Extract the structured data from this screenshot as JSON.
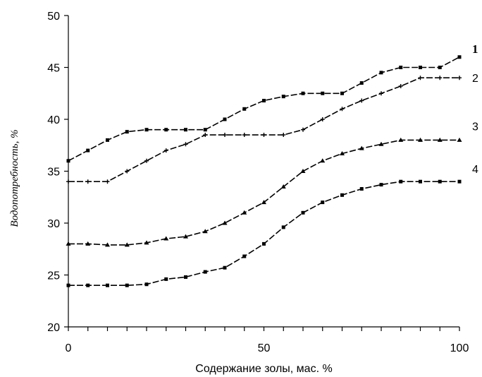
{
  "chart_data": {
    "type": "line",
    "title": "",
    "xlabel": "Содержание золы, мас. %",
    "ylabel": "Водопотребность, %",
    "xlim": [
      0,
      100
    ],
    "ylim": [
      20,
      50
    ],
    "x_ticks": [
      "0",
      "50",
      "100"
    ],
    "y_ticks": [
      "20",
      "25",
      "30",
      "35",
      "40",
      "45",
      "50"
    ],
    "grid": false,
    "legend": "inline labels at right end of lines",
    "x": [
      0,
      5,
      10,
      15,
      20,
      25,
      30,
      35,
      40,
      45,
      50,
      55,
      60,
      65,
      70,
      75,
      80,
      85,
      90,
      95,
      100
    ],
    "series": [
      {
        "name": "1",
        "marker": "square",
        "values": [
          36,
          37,
          38,
          38.8,
          39,
          39,
          39,
          39,
          40,
          41,
          41.8,
          42.2,
          42.5,
          42.5,
          42.5,
          43.5,
          44.5,
          45,
          45,
          45,
          46
        ]
      },
      {
        "name": "2",
        "marker": "plus",
        "values": [
          34,
          34,
          34,
          35,
          36,
          37,
          37.6,
          38.5,
          38.5,
          38.5,
          38.5,
          38.5,
          39,
          40,
          41,
          41.8,
          42.5,
          43.2,
          44,
          44,
          44
        ]
      },
      {
        "name": "3",
        "marker": "triangle",
        "values": [
          28,
          28,
          27.9,
          27.9,
          28.1,
          28.5,
          28.7,
          29.2,
          30,
          31,
          32,
          33.5,
          35,
          36,
          36.7,
          37.2,
          37.6,
          38,
          38,
          38,
          38
        ]
      },
      {
        "name": "4",
        "marker": "square",
        "values": [
          24,
          24,
          24,
          24,
          24.1,
          24.6,
          24.8,
          25.3,
          25.7,
          26.8,
          28,
          29.6,
          31,
          32,
          32.7,
          33.3,
          33.7,
          34,
          34,
          34,
          34
        ]
      }
    ]
  }
}
